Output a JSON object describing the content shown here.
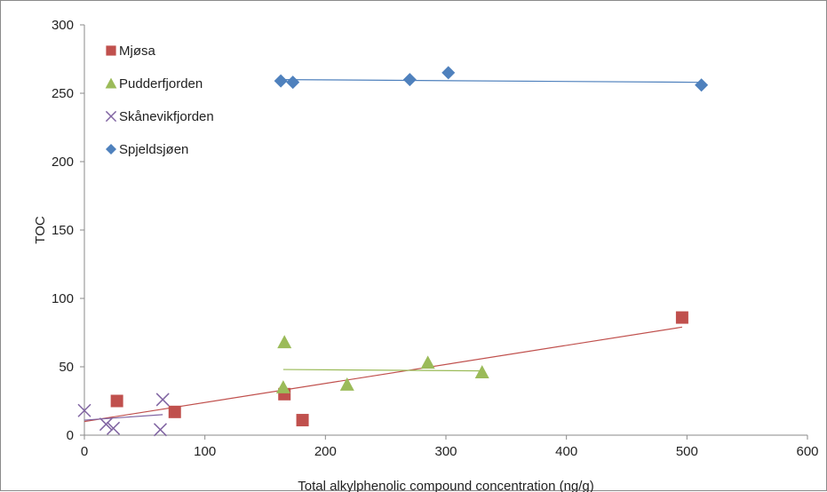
{
  "chart_data": {
    "type": "scatter",
    "title": "",
    "xlabel": "Total alkylphenolic compound concentration (ng/g)",
    "ylabel": "TOC",
    "xlim": [
      0,
      600
    ],
    "ylim": [
      0,
      300
    ],
    "x_ticks": [
      "0",
      "100",
      "200",
      "300",
      "400",
      "500",
      "600"
    ],
    "y_ticks": [
      "0",
      "50",
      "100",
      "150",
      "200",
      "250",
      "300"
    ],
    "grid": false,
    "legend_position": "top-left",
    "series": [
      {
        "name": "Mjøsa",
        "marker": "square",
        "color": "#c0504d",
        "points": [
          [
            27,
            25
          ],
          [
            75,
            17
          ],
          [
            166,
            30
          ],
          [
            181,
            11
          ],
          [
            496,
            86
          ]
        ],
        "trendline": [
          [
            0,
            10
          ],
          [
            496,
            79
          ]
        ]
      },
      {
        "name": "Pudderfjorden",
        "marker": "triangle",
        "color": "#9bbb59",
        "points": [
          [
            165,
            35
          ],
          [
            166,
            68
          ],
          [
            218,
            37
          ],
          [
            285,
            53
          ],
          [
            330,
            46
          ]
        ],
        "trendline": [
          [
            165,
            48
          ],
          [
            330,
            47
          ]
        ]
      },
      {
        "name": "Skånevikfjorden",
        "marker": "x",
        "color": "#8064a2",
        "points": [
          [
            0,
            18
          ],
          [
            18,
            8
          ],
          [
            24,
            5
          ],
          [
            63,
            4
          ],
          [
            65,
            26
          ]
        ],
        "trendline": [
          [
            0,
            11
          ],
          [
            65,
            15
          ]
        ]
      },
      {
        "name": "Spjeldsjøen",
        "marker": "diamond",
        "color": "#4f81bd",
        "points": [
          [
            163,
            259
          ],
          [
            173,
            258
          ],
          [
            270,
            260
          ],
          [
            302,
            265
          ],
          [
            512,
            256
          ]
        ],
        "trendline": [
          [
            163,
            260
          ],
          [
            512,
            258
          ]
        ]
      }
    ]
  }
}
